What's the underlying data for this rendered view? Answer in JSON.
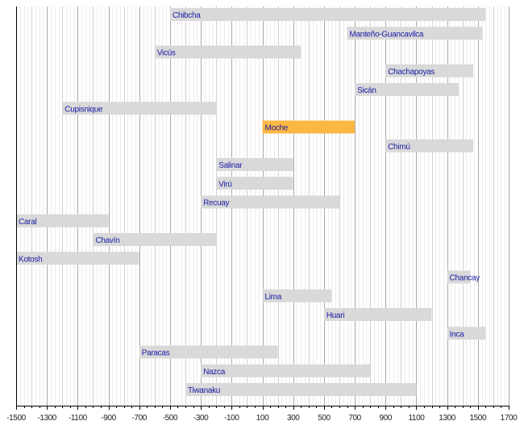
{
  "chart_data": {
    "type": "bar",
    "orientation": "horizontal-timeline",
    "xlim": [
      -1500,
      1700
    ],
    "xticks": [
      -1500,
      -1300,
      -1100,
      -900,
      -700,
      -500,
      -300,
      -100,
      100,
      300,
      500,
      700,
      900,
      1100,
      1300,
      1500,
      1700
    ],
    "grid": true,
    "bar_color": "#d9d9d9",
    "highlight_color": "#fbb843",
    "label_color": "#1a1aa6",
    "series": [
      {
        "name": "Chibcha",
        "start": -500,
        "end": 1550
      },
      {
        "name": "Manteño-Guancavilca",
        "start": 650,
        "end": 1530
      },
      {
        "name": "Vicús",
        "start": -600,
        "end": 350
      },
      {
        "name": "Chachapoyas",
        "start": 900,
        "end": 1470
      },
      {
        "name": "Sicán",
        "start": 700,
        "end": 1375
      },
      {
        "name": "Cupisnique",
        "start": -1200,
        "end": -200
      },
      {
        "name": "Moche",
        "start": 100,
        "end": 700,
        "highlight": true
      },
      {
        "name": "Chimú",
        "start": 900,
        "end": 1470
      },
      {
        "name": "Salinar",
        "start": -200,
        "end": 300
      },
      {
        "name": "Virú",
        "start": -200,
        "end": 300
      },
      {
        "name": "Recuay",
        "start": -300,
        "end": 600
      },
      {
        "name": "Caral",
        "start": -1500,
        "end": -900
      },
      {
        "name": "Chavín",
        "start": -1000,
        "end": -200
      },
      {
        "name": "Kotosh",
        "start": -1500,
        "end": -700
      },
      {
        "name": "Chancay",
        "start": 1300,
        "end": 1450
      },
      {
        "name": "Lima",
        "start": 100,
        "end": 550
      },
      {
        "name": "Huari",
        "start": 500,
        "end": 1200
      },
      {
        "name": "Inca",
        "start": 1300,
        "end": 1550
      },
      {
        "name": "Paracas",
        "start": -700,
        "end": 200
      },
      {
        "name": "Nazca",
        "start": -300,
        "end": 800
      },
      {
        "name": "Tiwanaku",
        "start": -400,
        "end": 1100
      }
    ]
  }
}
